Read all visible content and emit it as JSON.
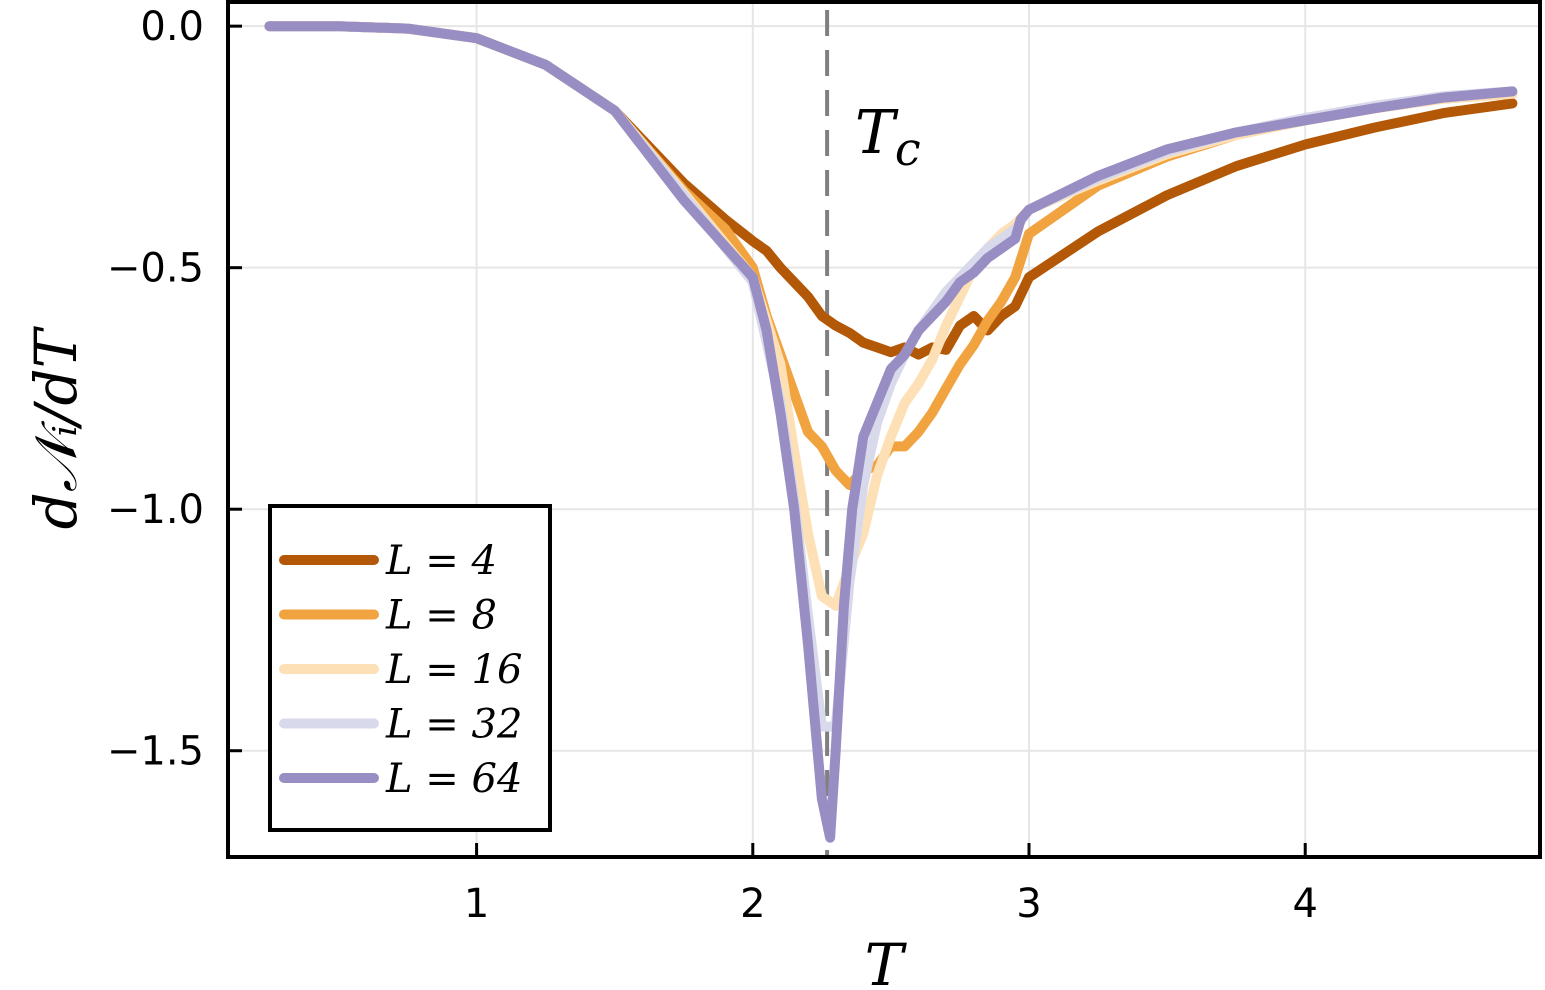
{
  "chart_data": {
    "type": "line",
    "title": "",
    "xlabel": "T",
    "ylabel": "d𝒩ᵢ/dT",
    "xlim": [
      0.1,
      4.85
    ],
    "ylim": [
      -1.72,
      0.05
    ],
    "xticks": [
      1,
      2,
      3,
      4
    ],
    "xtick_labels": [
      "1",
      "2",
      "3",
      "4"
    ],
    "yticks": [
      0.0,
      -0.5,
      -1.0,
      -1.5
    ],
    "ytick_labels": [
      "0.0",
      "−0.5",
      "−1.0",
      "−1.5"
    ],
    "grid": true,
    "legend_position": "bottom-left",
    "annotations": [
      {
        "text": "Tc",
        "x": 2.5,
        "y": -0.2
      },
      {
        "type": "vline",
        "x": 2.269,
        "style": "dashed",
        "color": "#808080"
      }
    ],
    "series": [
      {
        "name": "L = 4",
        "color": "#b35806",
        "points": [
          [
            0.25,
            0.0
          ],
          [
            0.5,
            0.0
          ],
          [
            0.75,
            -0.005
          ],
          [
            1.0,
            -0.025
          ],
          [
            1.25,
            -0.08
          ],
          [
            1.5,
            -0.175
          ],
          [
            1.75,
            -0.325
          ],
          [
            1.9,
            -0.4
          ],
          [
            2.0,
            -0.445
          ],
          [
            2.05,
            -0.465
          ],
          [
            2.1,
            -0.5
          ],
          [
            2.15,
            -0.53
          ],
          [
            2.2,
            -0.56
          ],
          [
            2.25,
            -0.6
          ],
          [
            2.3,
            -0.62
          ],
          [
            2.35,
            -0.635
          ],
          [
            2.4,
            -0.655
          ],
          [
            2.45,
            -0.665
          ],
          [
            2.5,
            -0.675
          ],
          [
            2.55,
            -0.665
          ],
          [
            2.6,
            -0.68
          ],
          [
            2.65,
            -0.665
          ],
          [
            2.7,
            -0.67
          ],
          [
            2.75,
            -0.62
          ],
          [
            2.8,
            -0.6
          ],
          [
            2.85,
            -0.63
          ],
          [
            2.9,
            -0.6
          ],
          [
            2.95,
            -0.58
          ],
          [
            3.0,
            -0.52
          ],
          [
            3.25,
            -0.425
          ],
          [
            3.5,
            -0.35
          ],
          [
            3.75,
            -0.29
          ],
          [
            4.0,
            -0.245
          ],
          [
            4.25,
            -0.21
          ],
          [
            4.5,
            -0.18
          ],
          [
            4.75,
            -0.16
          ]
        ]
      },
      {
        "name": "L = 8",
        "color": "#f1a340",
        "points": [
          [
            0.25,
            0.0
          ],
          [
            0.5,
            0.0
          ],
          [
            0.75,
            -0.005
          ],
          [
            1.0,
            -0.025
          ],
          [
            1.25,
            -0.08
          ],
          [
            1.5,
            -0.175
          ],
          [
            1.75,
            -0.34
          ],
          [
            1.9,
            -0.42
          ],
          [
            2.0,
            -0.5
          ],
          [
            2.05,
            -0.6
          ],
          [
            2.1,
            -0.68
          ],
          [
            2.15,
            -0.76
          ],
          [
            2.2,
            -0.84
          ],
          [
            2.25,
            -0.87
          ],
          [
            2.3,
            -0.92
          ],
          [
            2.35,
            -0.95
          ],
          [
            2.4,
            -0.92
          ],
          [
            2.45,
            -0.91
          ],
          [
            2.5,
            -0.87
          ],
          [
            2.55,
            -0.87
          ],
          [
            2.6,
            -0.84
          ],
          [
            2.65,
            -0.8
          ],
          [
            2.7,
            -0.75
          ],
          [
            2.75,
            -0.7
          ],
          [
            2.8,
            -0.66
          ],
          [
            2.85,
            -0.61
          ],
          [
            2.9,
            -0.57
          ],
          [
            2.95,
            -0.52
          ],
          [
            3.0,
            -0.43
          ],
          [
            3.25,
            -0.33
          ],
          [
            3.5,
            -0.27
          ],
          [
            3.75,
            -0.225
          ],
          [
            4.0,
            -0.195
          ],
          [
            4.25,
            -0.17
          ],
          [
            4.5,
            -0.15
          ],
          [
            4.75,
            -0.14
          ]
        ]
      },
      {
        "name": "L = 16",
        "color": "#fee0b6",
        "points": [
          [
            0.25,
            0.0
          ],
          [
            0.5,
            0.0
          ],
          [
            0.75,
            -0.005
          ],
          [
            1.0,
            -0.025
          ],
          [
            1.25,
            -0.08
          ],
          [
            1.5,
            -0.175
          ],
          [
            1.75,
            -0.345
          ],
          [
            2.0,
            -0.52
          ],
          [
            2.1,
            -0.7
          ],
          [
            2.15,
            -0.88
          ],
          [
            2.2,
            -1.05
          ],
          [
            2.25,
            -1.18
          ],
          [
            2.3,
            -1.2
          ],
          [
            2.35,
            -1.12
          ],
          [
            2.4,
            -1.05
          ],
          [
            2.45,
            -0.93
          ],
          [
            2.5,
            -0.85
          ],
          [
            2.55,
            -0.78
          ],
          [
            2.6,
            -0.74
          ],
          [
            2.65,
            -0.69
          ],
          [
            2.7,
            -0.62
          ],
          [
            2.75,
            -0.56
          ],
          [
            2.8,
            -0.5
          ],
          [
            2.85,
            -0.46
          ],
          [
            2.9,
            -0.43
          ],
          [
            2.95,
            -0.41
          ],
          [
            3.0,
            -0.38
          ],
          [
            3.25,
            -0.32
          ],
          [
            3.5,
            -0.265
          ],
          [
            3.75,
            -0.225
          ],
          [
            4.0,
            -0.195
          ],
          [
            4.25,
            -0.17
          ],
          [
            4.5,
            -0.15
          ],
          [
            4.75,
            -0.14
          ]
        ]
      },
      {
        "name": "L = 32",
        "color": "#d8daeb",
        "points": [
          [
            0.25,
            0.0
          ],
          [
            0.5,
            0.0
          ],
          [
            0.75,
            -0.005
          ],
          [
            1.0,
            -0.025
          ],
          [
            1.25,
            -0.08
          ],
          [
            1.5,
            -0.175
          ],
          [
            1.75,
            -0.35
          ],
          [
            2.0,
            -0.53
          ],
          [
            2.1,
            -0.78
          ],
          [
            2.15,
            -0.98
          ],
          [
            2.2,
            -1.22
          ],
          [
            2.25,
            -1.45
          ],
          [
            2.3,
            -1.45
          ],
          [
            2.35,
            -1.15
          ],
          [
            2.4,
            -0.95
          ],
          [
            2.45,
            -0.82
          ],
          [
            2.5,
            -0.74
          ],
          [
            2.55,
            -0.68
          ],
          [
            2.6,
            -0.63
          ],
          [
            2.65,
            -0.59
          ],
          [
            2.7,
            -0.55
          ],
          [
            2.75,
            -0.52
          ],
          [
            2.8,
            -0.49
          ],
          [
            2.85,
            -0.46
          ],
          [
            2.9,
            -0.44
          ],
          [
            2.95,
            -0.42
          ],
          [
            3.0,
            -0.38
          ],
          [
            3.25,
            -0.315
          ],
          [
            3.5,
            -0.26
          ],
          [
            3.75,
            -0.22
          ],
          [
            4.0,
            -0.19
          ],
          [
            4.25,
            -0.165
          ],
          [
            4.5,
            -0.145
          ],
          [
            4.75,
            -0.135
          ]
        ]
      },
      {
        "name": "L = 64",
        "color": "#998ec3",
        "points": [
          [
            0.25,
            0.0
          ],
          [
            0.5,
            0.0
          ],
          [
            0.75,
            -0.005
          ],
          [
            1.0,
            -0.025
          ],
          [
            1.25,
            -0.08
          ],
          [
            1.5,
            -0.175
          ],
          [
            1.75,
            -0.36
          ],
          [
            2.0,
            -0.52
          ],
          [
            2.05,
            -0.63
          ],
          [
            2.1,
            -0.8
          ],
          [
            2.15,
            -1.0
          ],
          [
            2.2,
            -1.28
          ],
          [
            2.25,
            -1.6
          ],
          [
            2.28,
            -1.68
          ],
          [
            2.3,
            -1.5
          ],
          [
            2.33,
            -1.2
          ],
          [
            2.36,
            -1.0
          ],
          [
            2.4,
            -0.85
          ],
          [
            2.45,
            -0.78
          ],
          [
            2.5,
            -0.71
          ],
          [
            2.55,
            -0.68
          ],
          [
            2.6,
            -0.63
          ],
          [
            2.65,
            -0.6
          ],
          [
            2.7,
            -0.57
          ],
          [
            2.75,
            -0.53
          ],
          [
            2.8,
            -0.51
          ],
          [
            2.85,
            -0.48
          ],
          [
            2.9,
            -0.46
          ],
          [
            2.95,
            -0.44
          ],
          [
            2.97,
            -0.4
          ],
          [
            3.0,
            -0.38
          ],
          [
            3.25,
            -0.31
          ],
          [
            3.5,
            -0.255
          ],
          [
            3.75,
            -0.22
          ],
          [
            4.0,
            -0.195
          ],
          [
            4.25,
            -0.17
          ],
          [
            4.5,
            -0.148
          ],
          [
            4.75,
            -0.135
          ]
        ]
      }
    ]
  }
}
